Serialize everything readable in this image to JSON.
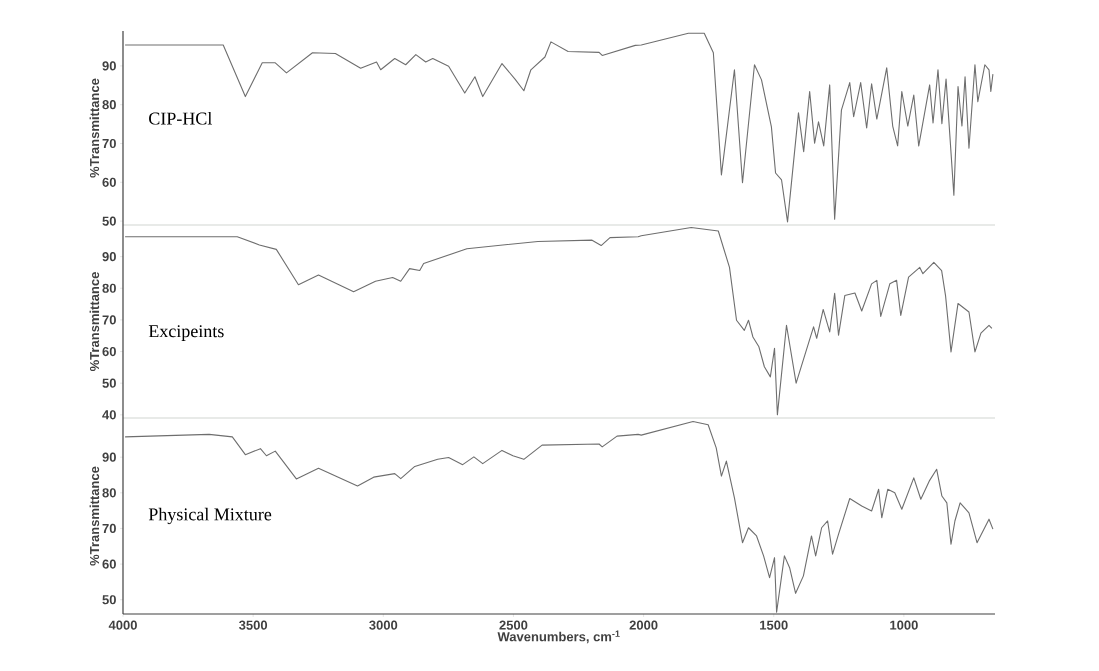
{
  "chart_data": [
    {
      "type": "line",
      "ylabel": "%Transmittance",
      "annotations": [
        "CIP-HCl"
      ],
      "tick_labels": "y",
      "color": "#6e6e6e",
      "xlim": [
        4000,
        650
      ],
      "ylim": [
        49,
        99
      ],
      "yticks": [
        50,
        60,
        70,
        80,
        90
      ],
      "x": [
        3992,
        3615,
        3530,
        3465,
        3415,
        3372,
        3272,
        3184,
        3087,
        3026,
        3010,
        2956,
        2914,
        2875,
        2837,
        2810,
        2749,
        2687,
        2648,
        2618,
        2544,
        2494,
        2460,
        2433,
        2379,
        2356,
        2290,
        2171,
        2159,
        2032,
        2009,
        1828,
        1767,
        1732,
        1701,
        1651,
        1620,
        1574,
        1547,
        1509,
        1493,
        1470,
        1447,
        1405,
        1385,
        1362,
        1343,
        1328,
        1308,
        1285,
        1266,
        1240,
        1208,
        1193,
        1166,
        1143,
        1124,
        1104,
        1066,
        1043,
        1024,
        1008,
        985,
        962,
        943,
        901,
        888,
        869,
        854,
        838,
        808,
        792,
        777,
        765,
        750,
        727,
        716,
        689,
        673,
        666,
        658
      ],
      "values": [
        95.4,
        95.4,
        82.1,
        90.8,
        90.8,
        88.2,
        93.4,
        93.2,
        89.4,
        91.0,
        89.0,
        91.9,
        90.3,
        92.9,
        91.0,
        91.9,
        89.9,
        83.0,
        87.2,
        82.1,
        90.6,
        86.6,
        83.6,
        89.0,
        92.3,
        96.2,
        93.7,
        93.5,
        92.7,
        95.3,
        95.4,
        98.4,
        98.4,
        93.4,
        61.9,
        89.0,
        59.9,
        90.3,
        86.4,
        74.3,
        62.4,
        60.6,
        49.8,
        77.9,
        67.9,
        83.4,
        70.1,
        75.6,
        69.4,
        85.1,
        50.5,
        78.6,
        85.7,
        76.9,
        85.7,
        74.0,
        85.4,
        76.3,
        89.5,
        74.5,
        69.4,
        83.4,
        74.5,
        82.5,
        69.4,
        85.1,
        75.3,
        89.0,
        75.1,
        86.6,
        56.7,
        84.7,
        74.5,
        87.2,
        68.8,
        90.3,
        80.8,
        90.3,
        89.0,
        83.4,
        87.9
      ]
    },
    {
      "type": "line",
      "ylabel": "%Transmittance",
      "annotations": [
        "Excipeints"
      ],
      "tick_labels": "y",
      "color": "#6e6e6e",
      "xlim": [
        4000,
        650
      ],
      "ylim": [
        39,
        100
      ],
      "yticks": [
        40,
        50,
        60,
        70,
        80,
        90
      ],
      "x": [
        3992,
        3561,
        3476,
        3411,
        3326,
        3249,
        3114,
        3030,
        2964,
        2933,
        2899,
        2860,
        2845,
        2679,
        2406,
        2198,
        2163,
        2129,
        2021,
        2009,
        1817,
        1713,
        1670,
        1643,
        1613,
        1597,
        1580,
        1557,
        1536,
        1513,
        1497,
        1486,
        1451,
        1414,
        1347,
        1335,
        1310,
        1285,
        1266,
        1251,
        1227,
        1188,
        1162,
        1124,
        1104,
        1089,
        1054,
        1028,
        1012,
        982,
        939,
        927,
        885,
        855,
        840,
        819,
        792,
        750,
        727,
        704,
        673,
        662
      ],
      "values": [
        96.3,
        96.3,
        93.7,
        92.3,
        81.1,
        84.2,
        78.9,
        82.2,
        83.4,
        82.2,
        86.2,
        85.6,
        87.8,
        92.5,
        94.8,
        95.2,
        93.5,
        96.0,
        96.3,
        96.6,
        99.2,
        98.1,
        86.6,
        69.9,
        66.7,
        69.9,
        64.6,
        61.5,
        55.2,
        52.0,
        61.0,
        40.0,
        68.3,
        50.0,
        67.8,
        64.2,
        73.3,
        66.2,
        78.4,
        65.2,
        77.7,
        78.5,
        72.8,
        81.4,
        82.5,
        71.1,
        81.4,
        82.5,
        71.4,
        83.5,
        86.6,
        84.6,
        88.2,
        85.6,
        77.7,
        59.9,
        75.2,
        72.5,
        59.9,
        65.8,
        68.3,
        67.3
      ]
    },
    {
      "type": "line",
      "ylabel": "%Transmittance",
      "xlabel": "Wavenumbers, cm$^{-1}$",
      "annotations": [
        "Physical Mixture"
      ],
      "color": "#6e6e6e",
      "xlim": [
        4000,
        650
      ],
      "ylim": [
        46,
        101
      ],
      "yticks": [
        50,
        60,
        70,
        80,
        90
      ],
      "xticks": [
        4000,
        3500,
        3000,
        2500,
        2000,
        1500,
        1000
      ],
      "x": [
        3992,
        3669,
        3580,
        3530,
        3472,
        3449,
        3415,
        3334,
        3249,
        3099,
        3037,
        2956,
        2933,
        2879,
        2791,
        2749,
        2695,
        2652,
        2618,
        2544,
        2502,
        2460,
        2390,
        2171,
        2159,
        2102,
        2021,
        2009,
        1810,
        1752,
        1721,
        1701,
        1682,
        1651,
        1620,
        1597,
        1566,
        1539,
        1516,
        1497,
        1489,
        1459,
        1439,
        1416,
        1386,
        1355,
        1339,
        1316,
        1293,
        1274,
        1251,
        1208,
        1162,
        1124,
        1097,
        1085,
        1062,
        1035,
        1008,
        962,
        935,
        901,
        874,
        854,
        835,
        819,
        804,
        784,
        750,
        719,
        673,
        658
      ],
      "values": [
        95.7,
        96.4,
        95.7,
        90.7,
        92.4,
        90.4,
        91.7,
        83.9,
        86.9,
        81.9,
        84.4,
        85.4,
        84.0,
        87.4,
        89.4,
        89.9,
        87.9,
        90.1,
        88.2,
        91.9,
        90.4,
        89.4,
        93.4,
        93.7,
        92.9,
        95.9,
        96.4,
        96.2,
        100.0,
        99.1,
        92.6,
        84.7,
        88.9,
        78.6,
        66.0,
        70.2,
        67.9,
        62.3,
        56.2,
        61.8,
        46.5,
        62.3,
        59.0,
        51.8,
        56.7,
        67.9,
        62.3,
        70.2,
        72.1,
        62.8,
        68.4,
        78.4,
        76.3,
        74.9,
        81.0,
        73.0,
        81.0,
        80.0,
        75.4,
        84.2,
        78.2,
        83.5,
        86.6,
        79.1,
        77.2,
        65.6,
        72.1,
        77.2,
        74.4,
        66.0,
        72.6,
        69.8
      ]
    }
  ]
}
